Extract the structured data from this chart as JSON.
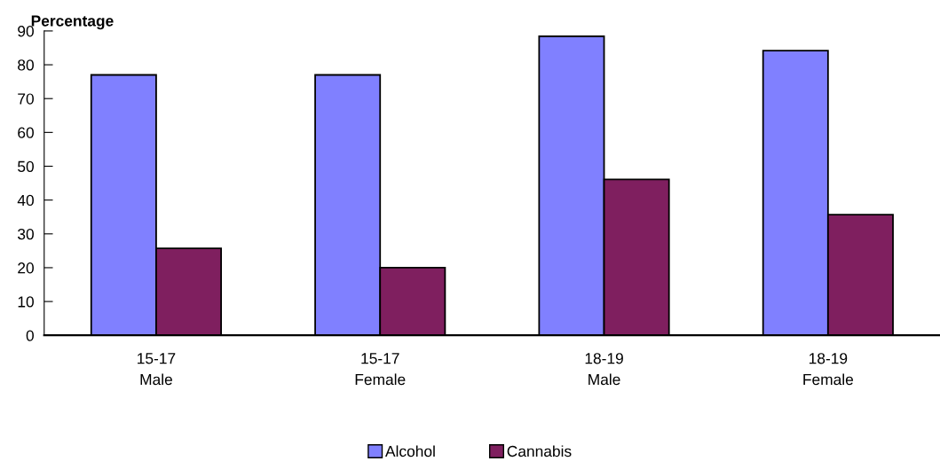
{
  "chart_data": {
    "type": "bar",
    "ylabel": "Percentage",
    "categories": [
      "15-17\nMale",
      "15-17\nFemale",
      "18-19\nMale",
      "18-19\nFemale"
    ],
    "series": [
      {
        "name": "Alcohol",
        "color": "#8080ff",
        "values": [
          77,
          77,
          88.4,
          84.2
        ]
      },
      {
        "name": "Cannabis",
        "color": "#7f1f5f",
        "values": [
          25.7,
          20,
          46.1,
          35.7
        ]
      }
    ],
    "ylim": [
      0,
      90
    ],
    "yticks": [
      0,
      10,
      20,
      30,
      40,
      50,
      60,
      70,
      80,
      90
    ],
    "grid": false,
    "legend": "bottom"
  }
}
